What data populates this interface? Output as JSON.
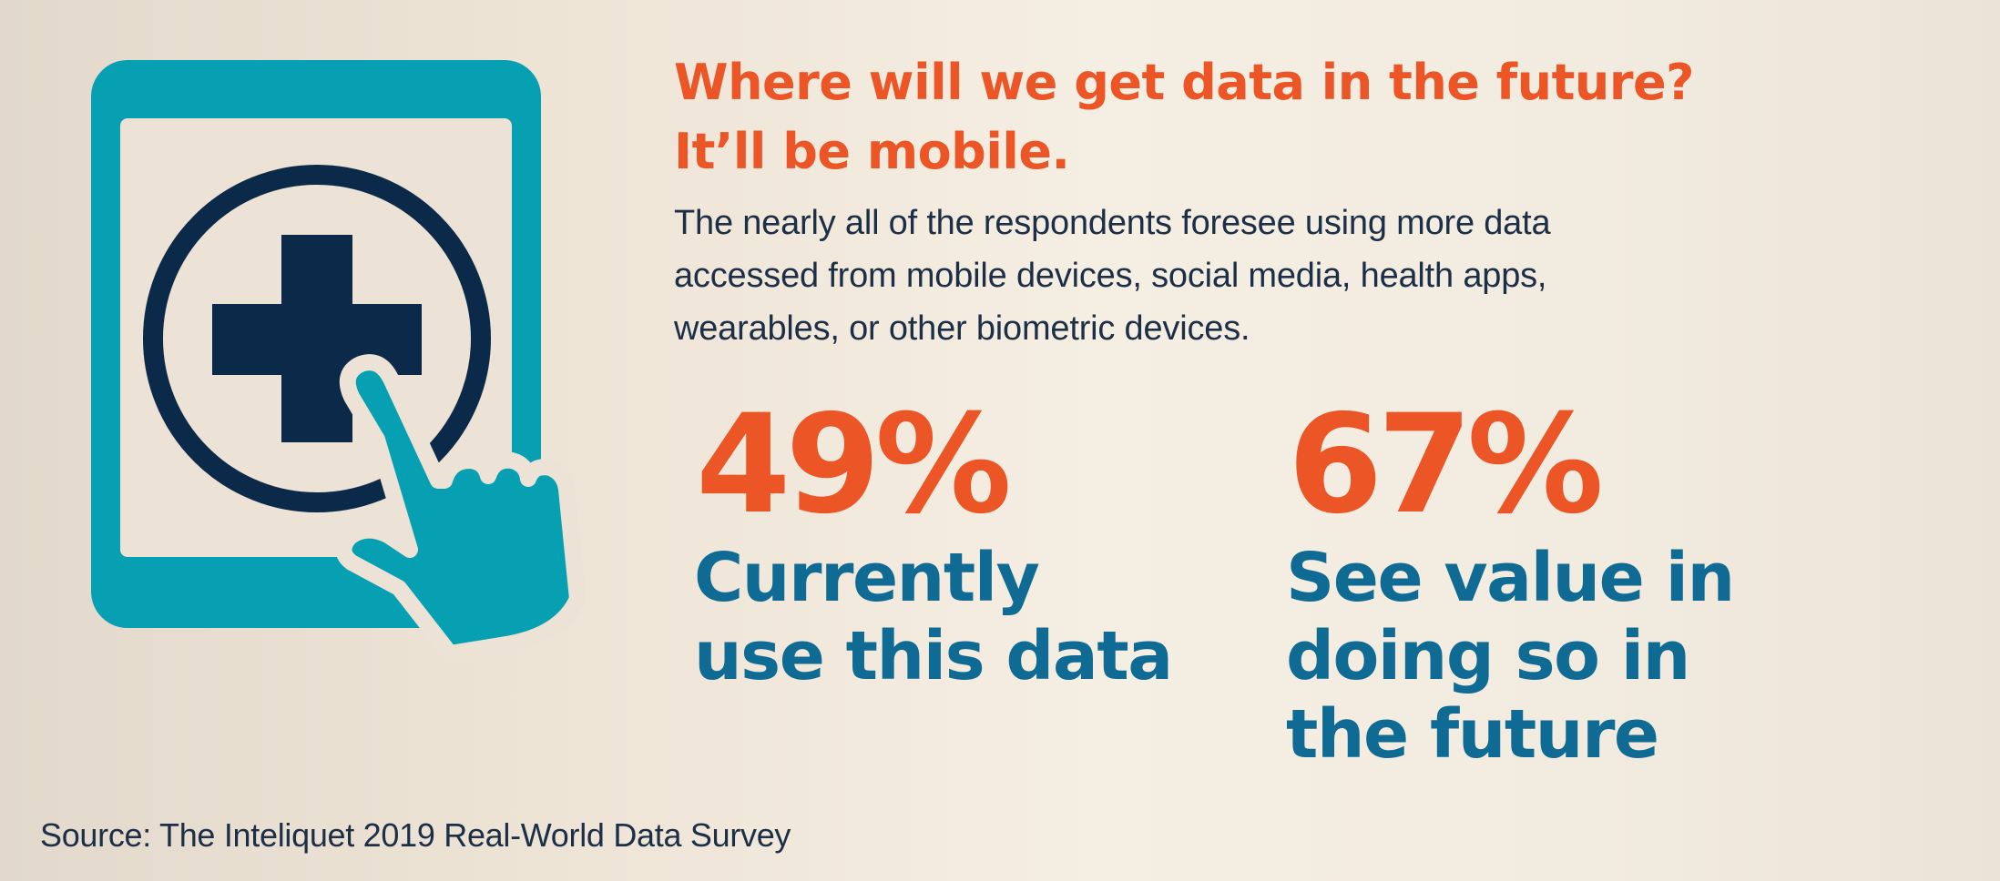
{
  "headline": {
    "line1": "Where will we get data in the future?",
    "line2": "It’ll be mobile."
  },
  "description": {
    "line1": "The nearly all of the respondents foresee using more data",
    "line2": "accessed from mobile devices, social media, health apps,",
    "line3": "wearables, or other biometric devices."
  },
  "stats": [
    {
      "value": "49%",
      "label_lines": [
        "Currently",
        "use this data"
      ]
    },
    {
      "value": "67%",
      "label_lines": [
        "See value in",
        "doing so in",
        "the future"
      ]
    }
  ],
  "source": "Source: The Inteliquet 2019 Real-World Data Survey",
  "illustration": {
    "icons": [
      "tablet-icon",
      "medical-cross-icon",
      "pointing-hand-icon"
    ]
  },
  "colors": {
    "accent_orange": "#ec5525",
    "stat_label_blue": "#0f6b93",
    "text_navy": "#1c2f47",
    "tablet_teal": "#07a0b2",
    "icon_navy": "#0b2a49",
    "screen_cream": "#ece2d5"
  }
}
